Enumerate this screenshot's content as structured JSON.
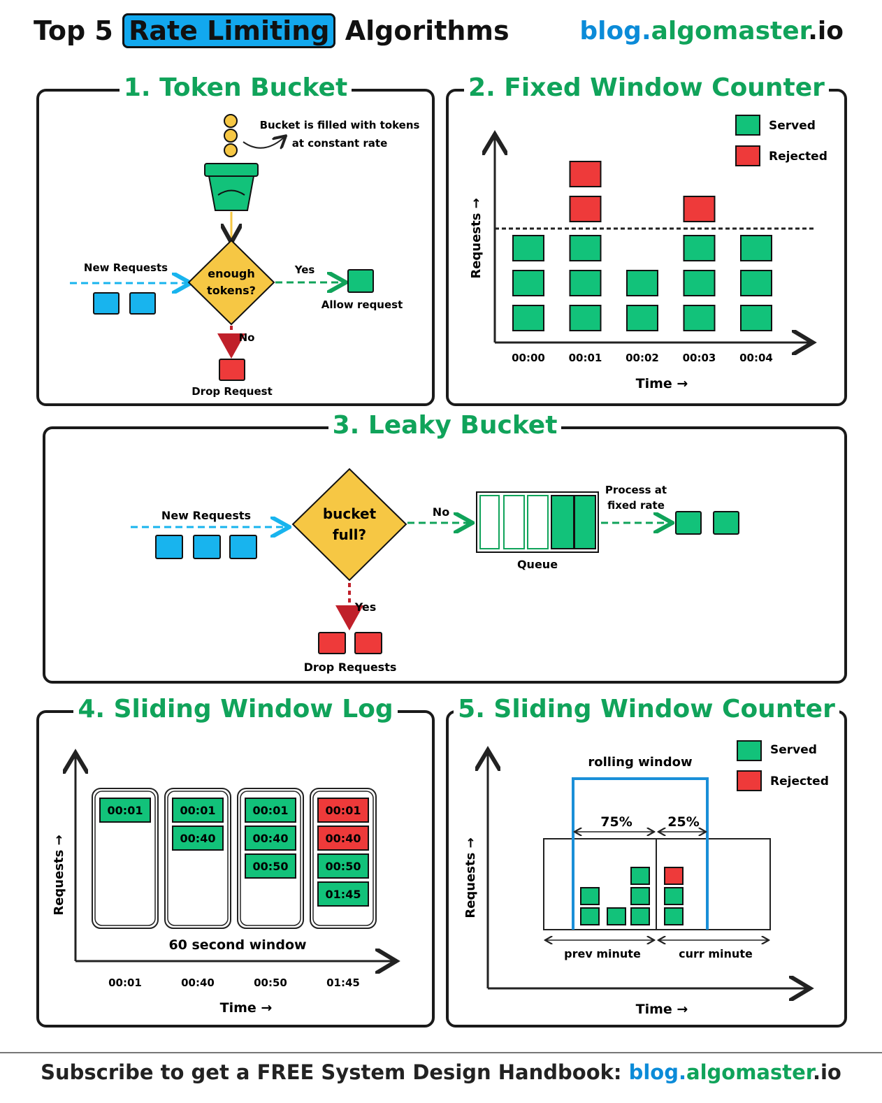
{
  "header": {
    "title_prefix": "Top 5",
    "title_highlight": "Rate Limiting",
    "title_suffix": "Algorithms",
    "brand_part1": "blog.",
    "brand_part2": "algomaster",
    "brand_part3": ".io"
  },
  "panels": {
    "p1": {
      "title": "1. Token Bucket",
      "fill_note_line1": "Bucket is filled with tokens",
      "fill_note_line2": "at constant rate",
      "new_requests": "New Requests",
      "decision_line1": "enough",
      "decision_line2": "tokens?",
      "yes": "Yes",
      "no": "No",
      "allow": "Allow request",
      "drop": "Drop Request"
    },
    "p2": {
      "title": "2. Fixed Window Counter",
      "legend_served": "Served",
      "legend_rejected": "Rejected",
      "ylabel": "Requests →",
      "xlabel": "Time →",
      "ticks": [
        "00:00",
        "00:01",
        "00:02",
        "00:03",
        "00:04"
      ]
    },
    "p3": {
      "title": "3. Leaky Bucket",
      "new_requests": "New Requests",
      "decision_line1": "bucket",
      "decision_line2": "full?",
      "no": "No",
      "yes": "Yes",
      "process_line1": "Process at",
      "process_line2": "fixed rate",
      "queue": "Queue",
      "drop": "Drop Requests"
    },
    "p4": {
      "title": "4. Sliding Window Log",
      "ylabel": "Requests →",
      "xlabel": "Time →",
      "window_label": "60 second window",
      "ticks": [
        "00:01",
        "00:40",
        "00:50",
        "01:45"
      ],
      "columns": [
        [
          {
            "t": "00:01",
            "s": "served"
          }
        ],
        [
          {
            "t": "00:01",
            "s": "served"
          },
          {
            "t": "00:40",
            "s": "served"
          }
        ],
        [
          {
            "t": "00:01",
            "s": "served"
          },
          {
            "t": "00:40",
            "s": "served"
          },
          {
            "t": "00:50",
            "s": "served"
          }
        ],
        [
          {
            "t": "00:01",
            "s": "rejected"
          },
          {
            "t": "00:40",
            "s": "rejected"
          },
          {
            "t": "00:50",
            "s": "served"
          },
          {
            "t": "01:45",
            "s": "served"
          }
        ]
      ]
    },
    "p5": {
      "title": "5. Sliding Window Counter",
      "legend_served": "Served",
      "legend_rejected": "Rejected",
      "rolling": "rolling window",
      "pct_prev": "75%",
      "pct_curr": "25%",
      "prev_minute": "prev minute",
      "curr_minute": "curr minute",
      "ylabel": "Requests →",
      "xlabel": "Time →"
    }
  },
  "chart_data": {
    "type": "bar",
    "categories": [
      "00:00",
      "00:01",
      "00:02",
      "00:03",
      "00:04"
    ],
    "series": [
      {
        "name": "Served",
        "values": [
          3,
          3,
          2,
          3,
          3
        ]
      },
      {
        "name": "Rejected",
        "values": [
          0,
          2,
          0,
          1,
          0
        ]
      }
    ],
    "xlabel": "Time →",
    "ylabel": "Requests →",
    "limit": 3
  },
  "footer": {
    "text": "Subscribe to get a FREE System Design Handbook:",
    "link1": "blog.",
    "link2": "algomaster",
    "link3": ".io"
  },
  "colors": {
    "served": "#12c27a",
    "rejected": "#ee3a3a",
    "request": "#18b4ee",
    "decision": "#f6c744",
    "accent_green": "#10a35a",
    "brand_blue": "#0b8bd8"
  }
}
